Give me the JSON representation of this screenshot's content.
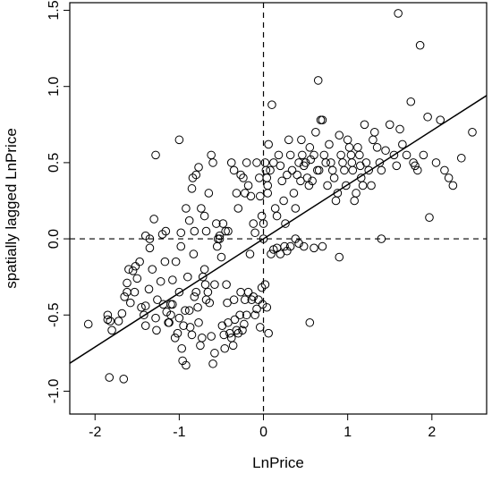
{
  "chart_data": {
    "type": "scatter",
    "title": "",
    "xlabel": "LnPrice",
    "ylabel": "spatially lagged LnPrice",
    "xlim": [
      -2.3,
      2.65
    ],
    "ylim": [
      -1.15,
      1.55
    ],
    "x_ticks": [
      -2,
      -1,
      0,
      1,
      2
    ],
    "x_tick_labels": [
      "-2",
      "-1",
      "0",
      "1",
      "2"
    ],
    "y_ticks": [
      -1.0,
      -0.5,
      0.0,
      0.5,
      1.0,
      1.5
    ],
    "y_tick_labels": [
      "-1.0",
      "-0.5",
      "0.0",
      "0.5",
      "1.0",
      "1.5"
    ],
    "grid": false,
    "reference_lines": {
      "x": 0,
      "y": 0,
      "style": "dashed"
    },
    "fit_line": {
      "intercept": 0.0,
      "slope": 0.355
    },
    "series": [
      {
        "marker": "open-circle",
        "points": [
          [
            -2.08,
            -0.56
          ],
          [
            -1.85,
            -0.5
          ],
          [
            -1.85,
            -0.53
          ],
          [
            -1.82,
            -0.54
          ],
          [
            -1.8,
            -0.6
          ],
          [
            -1.83,
            -0.91
          ],
          [
            -1.66,
            -0.92
          ],
          [
            -1.72,
            -0.54
          ],
          [
            -1.68,
            -0.49
          ],
          [
            -1.65,
            -0.38
          ],
          [
            -1.62,
            -0.35
          ],
          [
            -1.62,
            -0.29
          ],
          [
            -1.6,
            -0.2
          ],
          [
            -1.55,
            -0.21
          ],
          [
            -1.58,
            -0.42
          ],
          [
            -1.53,
            -0.35
          ],
          [
            -1.52,
            -0.18
          ],
          [
            -1.5,
            -0.26
          ],
          [
            -1.47,
            -0.15
          ],
          [
            -1.45,
            -0.45
          ],
          [
            -1.42,
            -0.5
          ],
          [
            -1.4,
            -0.57
          ],
          [
            -1.4,
            -0.44
          ],
          [
            -1.36,
            -0.33
          ],
          [
            -1.35,
            -0.06
          ],
          [
            -1.3,
            0.13
          ],
          [
            -1.4,
            0.02
          ],
          [
            -1.35,
            0.0
          ],
          [
            -1.32,
            -0.2
          ],
          [
            -1.28,
            -0.52
          ],
          [
            -1.27,
            -0.6
          ],
          [
            -1.26,
            -0.4
          ],
          [
            -1.22,
            -0.28
          ],
          [
            -1.19,
            -0.43
          ],
          [
            -1.2,
            0.03
          ],
          [
            -1.16,
            0.05
          ],
          [
            -1.17,
            -0.15
          ],
          [
            -1.15,
            -0.48
          ],
          [
            -1.13,
            -0.55
          ],
          [
            -1.12,
            -0.55
          ],
          [
            -1.1,
            -0.5
          ],
          [
            -1.1,
            -0.43
          ],
          [
            -1.08,
            -0.43
          ],
          [
            -1.08,
            -0.27
          ],
          [
            -1.05,
            -0.65
          ],
          [
            -1.04,
            -0.15
          ],
          [
            -1.02,
            -0.62
          ],
          [
            -1.0,
            -0.52
          ],
          [
            -1.0,
            -0.35
          ],
          [
            -0.98,
            -0.05
          ],
          [
            -0.98,
            0.04
          ],
          [
            -0.97,
            -0.72
          ],
          [
            -0.96,
            -0.8
          ],
          [
            -0.95,
            -0.57
          ],
          [
            -0.93,
            -0.47
          ],
          [
            -0.92,
            -0.83
          ],
          [
            -0.9,
            -0.25
          ],
          [
            -0.88,
            -0.47
          ],
          [
            -0.87,
            -0.58
          ],
          [
            -0.85,
            -0.63
          ],
          [
            -0.83,
            -0.1
          ],
          [
            -0.82,
            0.05
          ],
          [
            -0.82,
            -0.38
          ],
          [
            -0.8,
            -0.35
          ],
          [
            -0.78,
            -0.45
          ],
          [
            -0.77,
            -0.55
          ],
          [
            -0.75,
            -0.7
          ],
          [
            -0.73,
            -0.65
          ],
          [
            -0.72,
            -0.25
          ],
          [
            -0.7,
            -0.2
          ],
          [
            -0.69,
            -0.3
          ],
          [
            -0.68,
            -0.4
          ],
          [
            -0.66,
            -0.35
          ],
          [
            -0.64,
            -0.42
          ],
          [
            -0.62,
            -0.64
          ],
          [
            -0.6,
            -0.82
          ],
          [
            -0.58,
            -0.75
          ],
          [
            -0.58,
            -0.3
          ],
          [
            -0.55,
            -0.05
          ],
          [
            -0.54,
            0.0
          ],
          [
            -0.52,
            0.0
          ],
          [
            -0.5,
            -0.12
          ],
          [
            -0.49,
            -0.57
          ],
          [
            -0.47,
            -0.63
          ],
          [
            -0.46,
            -0.72
          ],
          [
            -0.44,
            -0.3
          ],
          [
            -0.43,
            -0.42
          ],
          [
            -0.42,
            -0.55
          ],
          [
            -0.4,
            -0.62
          ],
          [
            -0.38,
            -0.65
          ],
          [
            -0.36,
            -0.7
          ],
          [
            -0.35,
            -0.4
          ],
          [
            -0.34,
            -0.53
          ],
          [
            -0.32,
            -0.6
          ],
          [
            -0.3,
            -0.62
          ],
          [
            -0.28,
            -0.5
          ],
          [
            -0.27,
            -0.35
          ],
          [
            -0.25,
            -0.6
          ],
          [
            -0.23,
            -0.56
          ],
          [
            -0.22,
            -0.4
          ],
          [
            -0.2,
            -0.5
          ],
          [
            -0.18,
            -0.35
          ],
          [
            -0.16,
            -0.1
          ],
          [
            -0.14,
            -0.4
          ],
          [
            -0.12,
            -0.38
          ],
          [
            -0.1,
            -0.5
          ],
          [
            -0.08,
            -0.46
          ],
          [
            -0.06,
            -0.4
          ],
          [
            -0.04,
            -0.58
          ],
          [
            -0.02,
            -0.32
          ],
          [
            -0.01,
            -0.43
          ],
          [
            0.02,
            -0.3
          ],
          [
            0.04,
            -0.45
          ],
          [
            0.06,
            -0.62
          ],
          [
            0.09,
            -0.1
          ],
          [
            0.12,
            -0.07
          ],
          [
            0.16,
            -0.06
          ],
          [
            0.2,
            -0.1
          ],
          [
            0.25,
            -0.05
          ],
          [
            0.28,
            -0.08
          ],
          [
            0.32,
            -0.05
          ],
          [
            0.38,
            0.0
          ],
          [
            0.42,
            -0.03
          ],
          [
            0.48,
            -0.05
          ],
          [
            0.55,
            -0.55
          ],
          [
            0.6,
            -0.06
          ],
          [
            0.7,
            -0.05
          ],
          [
            0.9,
            -0.12
          ],
          [
            1.4,
            0.0
          ],
          [
            -1.28,
            0.55
          ],
          [
            -1.0,
            0.65
          ],
          [
            -0.92,
            0.2
          ],
          [
            -0.88,
            0.12
          ],
          [
            -0.85,
            0.33
          ],
          [
            -0.84,
            0.4
          ],
          [
            -0.8,
            0.42
          ],
          [
            -0.77,
            0.47
          ],
          [
            -0.74,
            0.2
          ],
          [
            -0.7,
            0.15
          ],
          [
            -0.68,
            0.05
          ],
          [
            -0.65,
            0.3
          ],
          [
            -0.62,
            0.55
          ],
          [
            -0.6,
            0.5
          ],
          [
            -0.56,
            0.1
          ],
          [
            -0.52,
            0.02
          ],
          [
            -0.48,
            0.1
          ],
          [
            -0.45,
            0.05
          ],
          [
            -0.42,
            0.05
          ],
          [
            -0.38,
            0.5
          ],
          [
            -0.35,
            0.45
          ],
          [
            -0.32,
            0.3
          ],
          [
            -0.3,
            0.2
          ],
          [
            -0.27,
            0.42
          ],
          [
            -0.24,
            0.4
          ],
          [
            -0.22,
            0.3
          ],
          [
            -0.2,
            0.5
          ],
          [
            -0.18,
            0.35
          ],
          [
            -0.15,
            0.28
          ],
          [
            -0.12,
            0.1
          ],
          [
            -0.1,
            0.04
          ],
          [
            -0.08,
            0.5
          ],
          [
            -0.05,
            0.4
          ],
          [
            -0.04,
            0.28
          ],
          [
            -0.02,
            0.15
          ],
          [
            0.0,
            0.1
          ],
          [
            0.0,
            0.0
          ],
          [
            0.02,
            0.5
          ],
          [
            0.03,
            0.45
          ],
          [
            0.04,
            0.4
          ],
          [
            0.05,
            0.35
          ],
          [
            0.05,
            0.3
          ],
          [
            0.06,
            0.62
          ],
          [
            0.08,
            0.45
          ],
          [
            0.1,
            0.88
          ],
          [
            0.12,
            0.5
          ],
          [
            0.14,
            0.2
          ],
          [
            0.16,
            0.15
          ],
          [
            0.18,
            0.55
          ],
          [
            0.2,
            0.48
          ],
          [
            0.22,
            0.38
          ],
          [
            0.24,
            0.25
          ],
          [
            0.26,
            0.1
          ],
          [
            0.28,
            0.42
          ],
          [
            0.3,
            0.65
          ],
          [
            0.32,
            0.55
          ],
          [
            0.34,
            0.45
          ],
          [
            0.36,
            0.3
          ],
          [
            0.38,
            0.2
          ],
          [
            0.4,
            0.42
          ],
          [
            0.42,
            0.5
          ],
          [
            0.44,
            0.38
          ],
          [
            0.45,
            0.65
          ],
          [
            0.46,
            0.55
          ],
          [
            0.48,
            0.48
          ],
          [
            0.5,
            0.5
          ],
          [
            0.52,
            0.4
          ],
          [
            0.54,
            0.35
          ],
          [
            0.55,
            0.6
          ],
          [
            0.56,
            0.52
          ],
          [
            0.58,
            0.38
          ],
          [
            0.6,
            0.55
          ],
          [
            0.62,
            0.7
          ],
          [
            0.64,
            0.45
          ],
          [
            0.65,
            1.04
          ],
          [
            0.66,
            0.45
          ],
          [
            0.68,
            0.78
          ],
          [
            0.7,
            0.78
          ],
          [
            0.72,
            0.55
          ],
          [
            0.74,
            0.5
          ],
          [
            0.76,
            0.35
          ],
          [
            0.78,
            0.62
          ],
          [
            0.8,
            0.5
          ],
          [
            0.82,
            0.45
          ],
          [
            0.84,
            0.4
          ],
          [
            0.86,
            0.25
          ],
          [
            0.88,
            0.3
          ],
          [
            0.9,
            0.68
          ],
          [
            0.92,
            0.55
          ],
          [
            0.94,
            0.5
          ],
          [
            0.96,
            0.45
          ],
          [
            0.98,
            0.35
          ],
          [
            1.0,
            0.65
          ],
          [
            1.02,
            0.6
          ],
          [
            1.04,
            0.55
          ],
          [
            1.05,
            0.5
          ],
          [
            1.06,
            0.45
          ],
          [
            1.08,
            0.25
          ],
          [
            1.1,
            0.3
          ],
          [
            1.12,
            0.6
          ],
          [
            1.14,
            0.55
          ],
          [
            1.15,
            0.48
          ],
          [
            1.16,
            0.4
          ],
          [
            1.18,
            0.35
          ],
          [
            1.2,
            0.75
          ],
          [
            1.22,
            0.5
          ],
          [
            1.25,
            0.45
          ],
          [
            1.28,
            0.35
          ],
          [
            1.3,
            0.65
          ],
          [
            1.32,
            0.7
          ],
          [
            1.35,
            0.6
          ],
          [
            1.38,
            0.5
          ],
          [
            1.4,
            0.45
          ],
          [
            1.45,
            0.58
          ],
          [
            1.5,
            0.75
          ],
          [
            1.55,
            0.55
          ],
          [
            1.58,
            0.48
          ],
          [
            1.6,
            1.48
          ],
          [
            1.62,
            0.72
          ],
          [
            1.65,
            0.62
          ],
          [
            1.7,
            0.55
          ],
          [
            1.75,
            0.9
          ],
          [
            1.78,
            0.5
          ],
          [
            1.8,
            0.48
          ],
          [
            1.83,
            0.45
          ],
          [
            1.86,
            1.27
          ],
          [
            1.9,
            0.55
          ],
          [
            1.95,
            0.8
          ],
          [
            1.97,
            0.14
          ],
          [
            2.05,
            0.5
          ],
          [
            2.1,
            0.78
          ],
          [
            2.15,
            0.45
          ],
          [
            2.2,
            0.4
          ],
          [
            2.25,
            0.35
          ],
          [
            2.35,
            0.53
          ],
          [
            2.48,
            0.7
          ]
        ]
      }
    ]
  }
}
